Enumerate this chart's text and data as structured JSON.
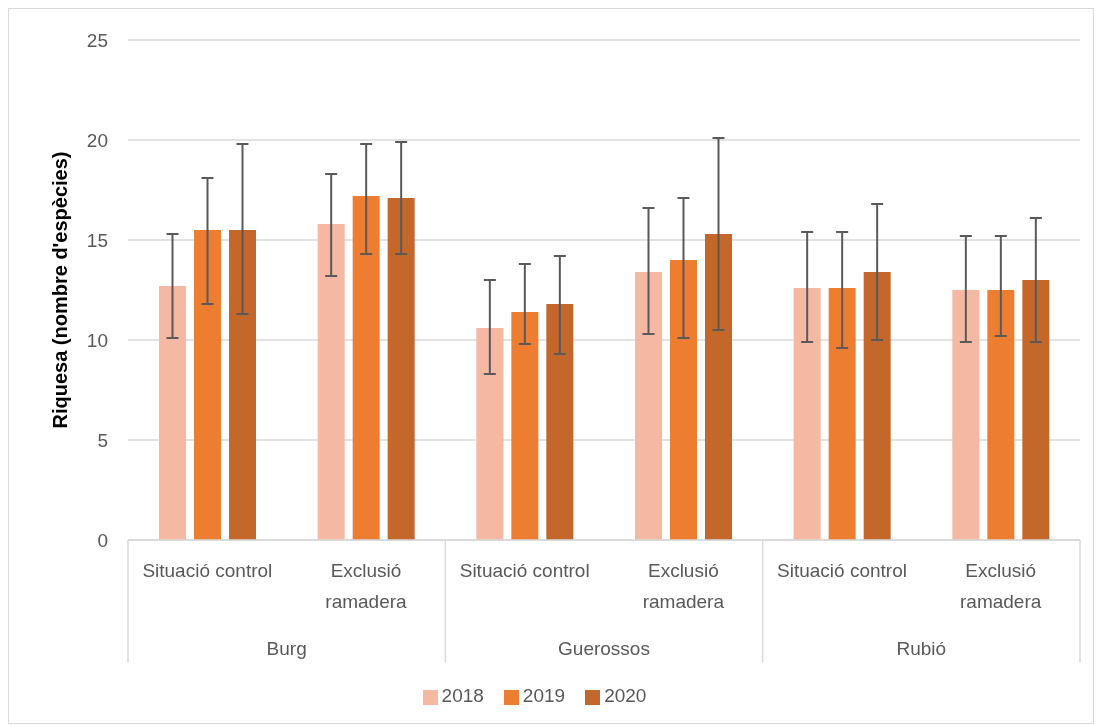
{
  "chart_data": {
    "type": "bar",
    "ylabel": "Riquesa (nombre d'espècies)",
    "categories": [
      "Situació control",
      "Exclusió ramadera",
      "Situació control",
      "Exclusió ramadera",
      "Situació control",
      "Exclusió ramadera"
    ],
    "annotations": [
      "Burg",
      "Guerossos",
      "Rubió"
    ],
    "series": [
      {
        "name": "2018",
        "color": "#f4b8a3",
        "values": [
          12.7,
          15.8,
          10.6,
          13.4,
          12.6,
          12.5
        ],
        "errors": [
          [
            10.1,
            15.3
          ],
          [
            13.2,
            18.3
          ],
          [
            8.3,
            13.0
          ],
          [
            10.3,
            16.6
          ],
          [
            9.9,
            15.4
          ],
          [
            9.9,
            15.2
          ]
        ]
      },
      {
        "name": "2019",
        "color": "#ed7d31",
        "values": [
          15.5,
          17.2,
          11.4,
          14.0,
          12.6,
          12.5
        ],
        "errors": [
          [
            11.8,
            18.1
          ],
          [
            14.3,
            19.8
          ],
          [
            9.8,
            13.8
          ],
          [
            10.1,
            17.1
          ],
          [
            9.6,
            15.4
          ],
          [
            10.2,
            15.2
          ]
        ]
      },
      {
        "name": "2020",
        "color": "#c4672a",
        "values": [
          15.5,
          17.1,
          11.8,
          15.3,
          13.4,
          13.0
        ],
        "errors": [
          [
            11.3,
            19.8
          ],
          [
            14.3,
            19.9
          ],
          [
            9.3,
            14.2
          ],
          [
            10.5,
            20.1
          ],
          [
            10.0,
            16.8
          ],
          [
            9.9,
            16.1
          ]
        ]
      }
    ],
    "ylim": [
      0,
      25
    ],
    "yticks": [
      0,
      5,
      10,
      15,
      20,
      25
    ],
    "grid": "y",
    "legend": "bottom"
  }
}
